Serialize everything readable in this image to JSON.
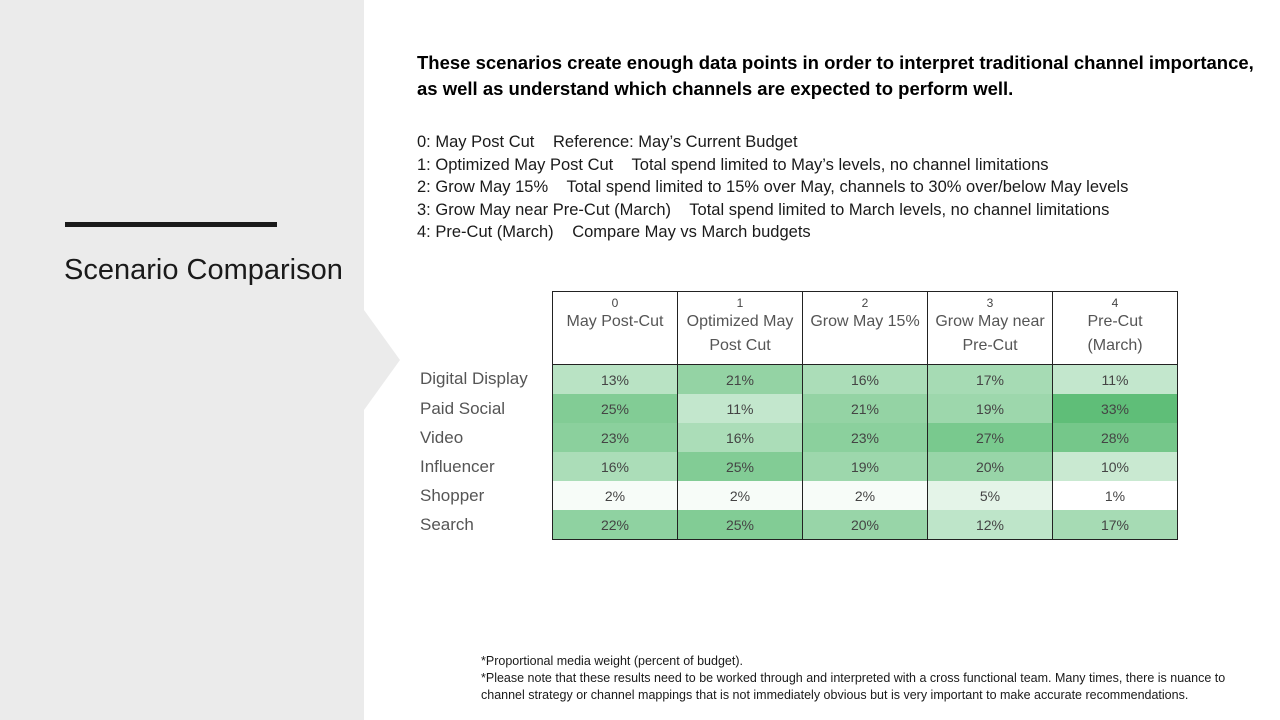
{
  "slide": {
    "title": "Scenario Comparison",
    "headline_line1": "These scenarios create enough data points in order to interpret traditional channel importance,",
    "headline_line2": "as well as understand which channels are expected to perform well."
  },
  "scenarios": [
    {
      "code": "0:",
      "name": "May Post Cut",
      "desc": "Reference: May’s Current Budget"
    },
    {
      "code": "1:",
      "name": "Optimized May Post Cut",
      "desc": "Total spend limited to May’s levels, no channel limitations"
    },
    {
      "code": "2:",
      "name": "Grow May 15%",
      "desc": "Total spend limited to 15% over May, channels to 30% over/below May levels"
    },
    {
      "code": "3:",
      "name": "Grow May near Pre-Cut (March)",
      "desc": "Total spend limited to March levels, no channel limitations"
    },
    {
      "code": "4:",
      "name": "Pre-Cut (March)",
      "desc": "Compare May vs March budgets"
    }
  ],
  "table": {
    "columns": [
      {
        "num": "0",
        "line1": "May Post-Cut",
        "line2": ""
      },
      {
        "num": "1",
        "line1": "Optimized May",
        "line2": "Post Cut"
      },
      {
        "num": "2",
        "line1": "Grow May 15%",
        "line2": ""
      },
      {
        "num": "3",
        "line1": "Grow May near",
        "line2": "Pre-Cut"
      },
      {
        "num": "4",
        "line1": "Pre-Cut",
        "line2": "(March)"
      }
    ],
    "rows": [
      {
        "label": "Digital Display",
        "cells": [
          "13%",
          "21%",
          "16%",
          "17%",
          "11%"
        ]
      },
      {
        "label": "Paid Social",
        "cells": [
          "25%",
          "11%",
          "21%",
          "19%",
          "33%"
        ]
      },
      {
        "label": "Video",
        "cells": [
          "23%",
          "16%",
          "23%",
          "27%",
          "28%"
        ]
      },
      {
        "label": "Influencer",
        "cells": [
          "16%",
          "25%",
          "19%",
          "20%",
          "10%"
        ]
      },
      {
        "label": "Shopper",
        "cells": [
          "2%",
          "2%",
          "2%",
          "5%",
          "1%"
        ]
      },
      {
        "label": "Search",
        "cells": [
          "22%",
          "25%",
          "20%",
          "12%",
          "17%"
        ]
      }
    ]
  },
  "chart_data": {
    "type": "heatmap",
    "categories": [
      "May Post-Cut",
      "Optimized May Post Cut",
      "Grow May 15%",
      "Grow May near Pre-Cut",
      "Pre-Cut (March)"
    ],
    "rows": [
      "Digital Display",
      "Paid Social",
      "Video",
      "Influencer",
      "Shopper",
      "Search"
    ],
    "values": [
      [
        13,
        21,
        16,
        17,
        11
      ],
      [
        25,
        11,
        21,
        19,
        33
      ],
      [
        23,
        16,
        23,
        27,
        28
      ],
      [
        16,
        25,
        19,
        20,
        10
      ],
      [
        2,
        2,
        2,
        5,
        1
      ],
      [
        22,
        25,
        20,
        12,
        17
      ]
    ],
    "unit": "%",
    "color_scale": {
      "low": "#ffffff",
      "high": "#5fbe78"
    }
  },
  "footnotes": {
    "note1": "*Proportional media weight (percent of budget).",
    "note2": "*Please note that these results need to be worked through and interpreted with a cross functional team.  Many times, there is nuance to channel strategy or channel mappings that is not immediately obvious but is very important to make accurate recommendations."
  }
}
